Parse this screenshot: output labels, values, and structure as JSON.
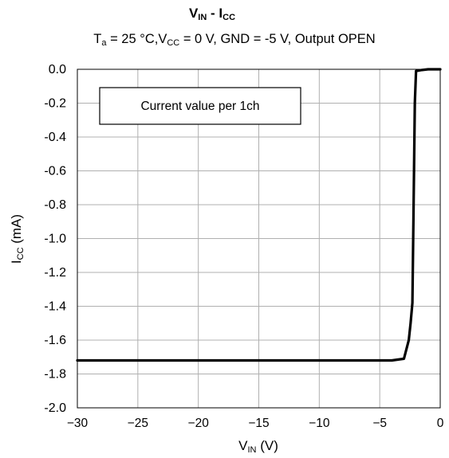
{
  "chart_data": {
    "type": "line",
    "title": {
      "main": "V",
      "main_sub": "IN",
      "sep": " - ",
      "second": "I",
      "second_sub": "CC"
    },
    "subtitle": {
      "p1": "T",
      "p1_sub": "a",
      "p2": " = 25 °C,V",
      "p2_sub": "CC",
      "p3": " = 0 V, GND = -5 V, Output OPEN"
    },
    "xlabel": {
      "main": "V",
      "sub": "IN",
      "rest": " (V)"
    },
    "ylabel": {
      "main": "I",
      "sub": "CC",
      "rest": " (mA)"
    },
    "annotation": "Current value per 1ch",
    "xlim": [
      -30,
      0
    ],
    "ylim": [
      -2.0,
      0.0
    ],
    "x_ticks": [
      -30,
      -25,
      -20,
      -15,
      -10,
      -5,
      0
    ],
    "x_tick_labels": [
      "−30",
      "−25",
      "−20",
      "−15",
      "−10",
      "−5",
      "0"
    ],
    "y_ticks": [
      0.0,
      -0.2,
      -0.4,
      -0.6,
      -0.8,
      -1.0,
      -1.2,
      -1.4,
      -1.6,
      -1.8,
      -2.0
    ],
    "y_tick_labels": [
      "0.0",
      "-0.2",
      "-0.4",
      "-0.6",
      "-0.8",
      "-1.0",
      "-1.2",
      "-1.4",
      "-1.6",
      "-1.8",
      "-2.0"
    ],
    "grid": true,
    "line_color": "#000000",
    "series": [
      {
        "x": [
          -30,
          -10,
          -4.0,
          -3.0,
          -2.6,
          -2.45,
          -2.3,
          -2.2,
          -2.1,
          -2.0,
          -1.5,
          -1.0,
          -0.5,
          0
        ],
        "y": [
          -1.72,
          -1.72,
          -1.72,
          -1.71,
          -1.6,
          -1.5,
          -1.38,
          -0.8,
          -0.2,
          -0.01,
          -0.004,
          0.0,
          0.0,
          0.0
        ]
      }
    ]
  }
}
